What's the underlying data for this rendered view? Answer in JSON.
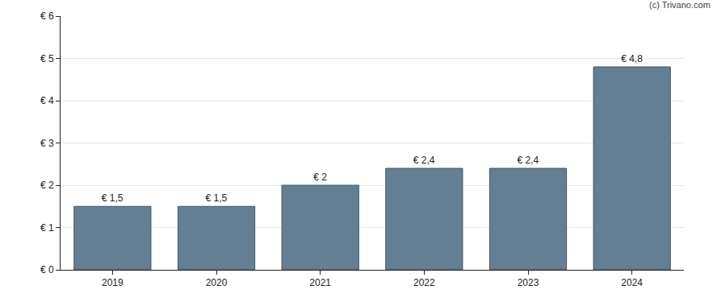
{
  "chart_data": {
    "type": "bar",
    "categories": [
      "2019",
      "2020",
      "2021",
      "2022",
      "2023",
      "2024"
    ],
    "values": [
      1.5,
      1.5,
      2,
      2.4,
      2.4,
      4.8
    ],
    "value_labels": [
      "€ 1,5",
      "€ 1,5",
      "€ 2",
      "€ 2,4",
      "€ 2,4",
      "€ 4,8"
    ],
    "data_labels": true,
    "color": "#647f94",
    "ylim": [
      0,
      6
    ],
    "yticks": [
      {
        "value": 0,
        "label": "€ 0"
      },
      {
        "value": 1,
        "label": "€ 1"
      },
      {
        "value": 2,
        "label": "€ 2"
      },
      {
        "value": 3,
        "label": "€ 3"
      },
      {
        "value": 4,
        "label": "€ 4"
      },
      {
        "value": 5,
        "label": "€ 5"
      },
      {
        "value": 6,
        "label": "€ 6"
      }
    ],
    "grid": true,
    "annotations": [
      "(c) Trivano.com"
    ]
  }
}
